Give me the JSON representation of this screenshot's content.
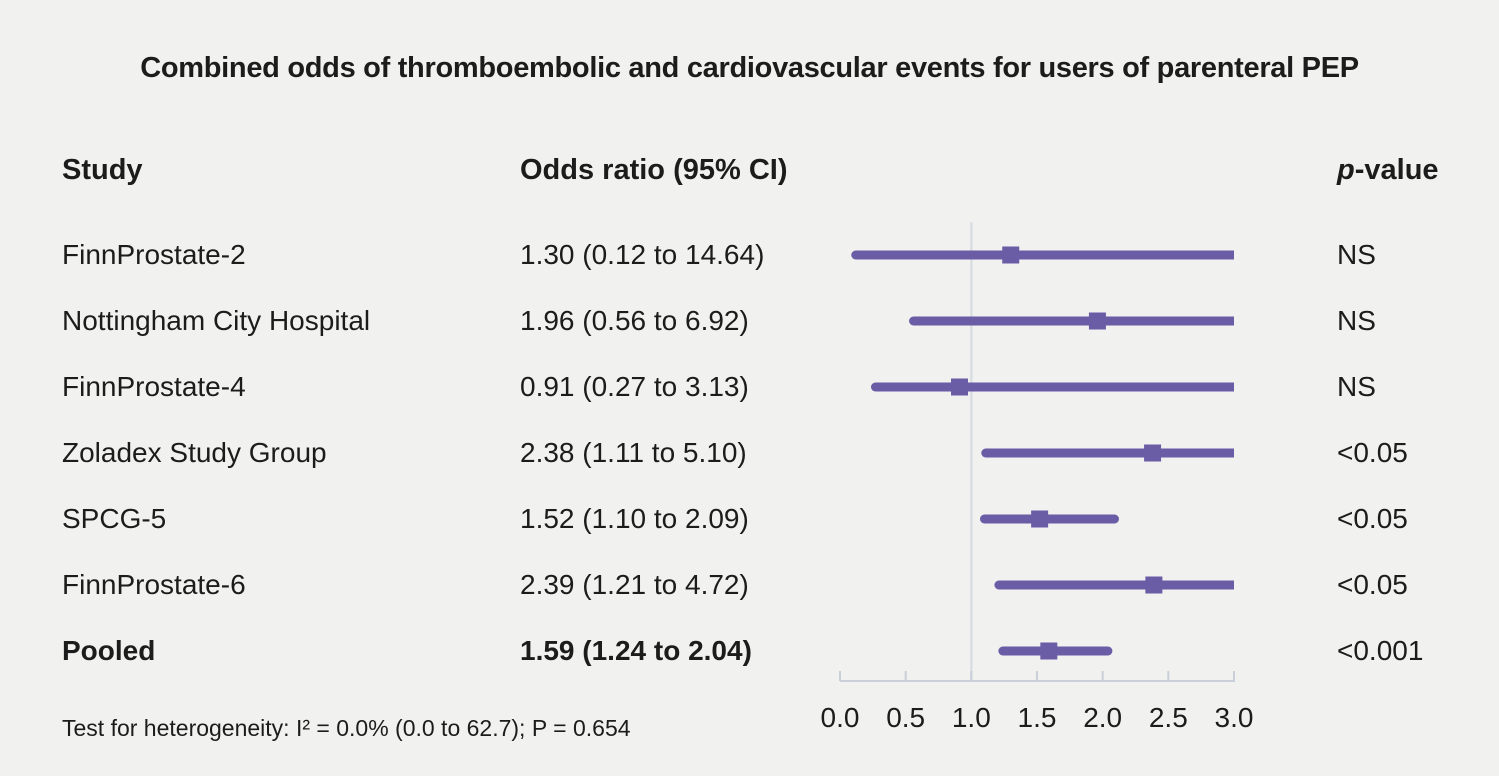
{
  "title": "Combined odds of thromboembolic and cardiovascular events for users of parenteral PEP",
  "headers": {
    "study": "Study",
    "odds_ratio": "Odds ratio (95% CI)",
    "pvalue_prefix": "p",
    "pvalue_suffix": "-value"
  },
  "footnote": "Test for heterogeneity: I² = 0.0% (0.0 to 62.7); P = 0.654",
  "colors": {
    "background": "#f1f1ef",
    "text": "#1c1c1c",
    "marker_purple": "#6b5ca6",
    "axis_line": "#c9d0d9",
    "reference_line": "#d9dee3"
  },
  "chart_data": {
    "type": "forest",
    "title": "Combined odds of thromboembolic and cardiovascular events for users of parenteral PEP",
    "xlabel": "",
    "x_range": [
      0.0,
      3.0
    ],
    "x_ticks": [
      0.0,
      0.5,
      1.0,
      1.5,
      2.0,
      2.5,
      3.0
    ],
    "x_tick_labels": [
      "0.0",
      "0.5",
      "1.0",
      "1.5",
      "2.0",
      "2.5",
      "3.0"
    ],
    "reference_line_x": 1.0,
    "grid": false,
    "studies": [
      {
        "label": "FinnProstate-2",
        "or": 1.3,
        "ci_low": 0.12,
        "ci_high": 14.64,
        "or_text": "1.30 (0.12 to 14.64)",
        "p_value": "NS",
        "pooled": false
      },
      {
        "label": "Nottingham City Hospital",
        "or": 1.96,
        "ci_low": 0.56,
        "ci_high": 6.92,
        "or_text": "1.96 (0.56 to 6.92)",
        "p_value": "NS",
        "pooled": false
      },
      {
        "label": "FinnProstate-4",
        "or": 0.91,
        "ci_low": 0.27,
        "ci_high": 3.13,
        "or_text": "0.91 (0.27 to 3.13)",
        "p_value": "NS",
        "pooled": false
      },
      {
        "label": "Zoladex Study Group",
        "or": 2.38,
        "ci_low": 1.11,
        "ci_high": 5.1,
        "or_text": "2.38 (1.11 to 5.10)",
        "p_value": "<0.05",
        "pooled": false
      },
      {
        "label": "SPCG-5",
        "or": 1.52,
        "ci_low": 1.1,
        "ci_high": 2.09,
        "or_text": "1.52 (1.10 to 2.09)",
        "p_value": "<0.05",
        "pooled": false
      },
      {
        "label": "FinnProstate-6",
        "or": 2.39,
        "ci_low": 1.21,
        "ci_high": 4.72,
        "or_text": "2.39 (1.21 to 4.72)",
        "p_value": "<0.05",
        "pooled": false
      },
      {
        "label": "Pooled",
        "or": 1.59,
        "ci_low": 1.24,
        "ci_high": 2.04,
        "or_text": "1.59 (1.24 to 2.04)",
        "p_value": "<0.001",
        "pooled": true
      }
    ]
  }
}
